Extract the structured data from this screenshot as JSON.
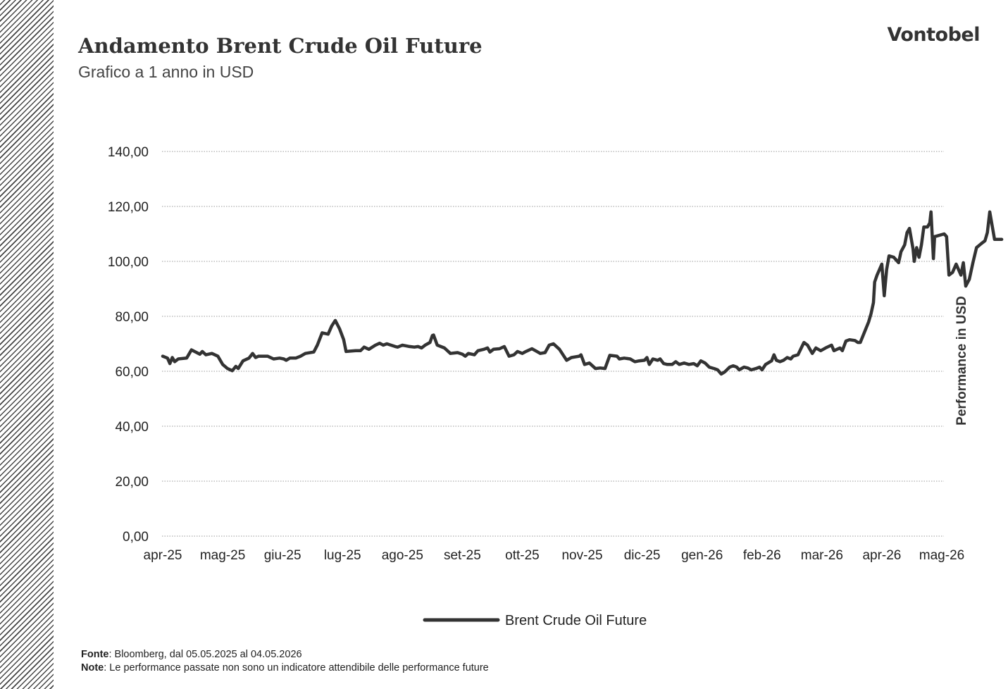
{
  "header": {
    "title": "Andamento Brent Crude Oil Future",
    "subtitle": "Grafico a 1 anno in USD",
    "brand": "Vontobel"
  },
  "footer": {
    "source_label": "Fonte",
    "source_text": ": Bloomberg, dal 05.05.2025 al 04.05.2026",
    "note_label": "Note",
    "note_text": ": Le performance passate non sono un indicatore attendibile delle performance future"
  },
  "colors": {
    "line": "#333333",
    "grid": "#999999",
    "hatch": "#444444"
  },
  "chart_data": {
    "type": "line",
    "title": "Andamento Brent Crude Oil Future",
    "subtitle": "Grafico a 1 anno in USD",
    "xlabel": "",
    "ylabel": "Performance in USD",
    "ylim": [
      0,
      140
    ],
    "y_ticks": [
      0,
      20,
      40,
      60,
      80,
      100,
      120,
      140
    ],
    "y_tick_labels": [
      "0,00",
      "20,00",
      "40,00",
      "60,00",
      "80,00",
      "100,00",
      "120,00",
      "140,00"
    ],
    "x_tick_labels": [
      "apr-25",
      "mag-25",
      "giu-25",
      "lug-25",
      "ago-25",
      "set-25",
      "ott-25",
      "nov-25",
      "dic-25",
      "gen-26",
      "feb-26",
      "mar-26",
      "apr-26",
      "mag-26"
    ],
    "grid": "horizontal dotted",
    "legend_position": "bottom",
    "series": [
      {
        "name": "Brent Crude Oil Future",
        "points": [
          [
            0.0,
            65.5
          ],
          [
            0.08,
            64.8
          ],
          [
            0.12,
            62.8
          ],
          [
            0.16,
            65.0
          ],
          [
            0.2,
            63.5
          ],
          [
            0.26,
            64.5
          ],
          [
            0.4,
            64.8
          ],
          [
            0.48,
            67.8
          ],
          [
            0.62,
            66.2
          ],
          [
            0.66,
            67.2
          ],
          [
            0.72,
            66.0
          ],
          [
            0.82,
            66.5
          ],
          [
            0.92,
            65.5
          ],
          [
            1.0,
            62.5
          ],
          [
            1.08,
            61.0
          ],
          [
            1.16,
            60.2
          ],
          [
            1.22,
            61.8
          ],
          [
            1.26,
            61.0
          ],
          [
            1.34,
            63.8
          ],
          [
            1.44,
            64.8
          ],
          [
            1.5,
            66.5
          ],
          [
            1.55,
            65.0
          ],
          [
            1.6,
            65.5
          ],
          [
            1.75,
            65.5
          ],
          [
            1.85,
            64.5
          ],
          [
            1.95,
            64.8
          ],
          [
            2.02,
            64.5
          ],
          [
            2.06,
            64.0
          ],
          [
            2.12,
            64.8
          ],
          [
            2.22,
            64.8
          ],
          [
            2.3,
            65.5
          ],
          [
            2.38,
            66.5
          ],
          [
            2.52,
            67.0
          ],
          [
            2.58,
            69.5
          ],
          [
            2.66,
            74.0
          ],
          [
            2.76,
            73.5
          ],
          [
            2.82,
            76.5
          ],
          [
            2.88,
            78.5
          ],
          [
            2.95,
            75.5
          ],
          [
            3.02,
            71.5
          ],
          [
            3.06,
            67.2
          ],
          [
            3.22,
            67.5
          ],
          [
            3.3,
            67.5
          ],
          [
            3.36,
            68.8
          ],
          [
            3.44,
            68.0
          ],
          [
            3.55,
            69.5
          ],
          [
            3.62,
            70.2
          ],
          [
            3.68,
            69.5
          ],
          [
            3.74,
            70.0
          ],
          [
            3.88,
            69.0
          ],
          [
            3.92,
            68.8
          ],
          [
            4.0,
            69.5
          ],
          [
            4.12,
            69.0
          ],
          [
            4.2,
            68.8
          ],
          [
            4.26,
            69.0
          ],
          [
            4.32,
            68.5
          ],
          [
            4.38,
            69.5
          ],
          [
            4.46,
            70.5
          ],
          [
            4.5,
            73.0
          ],
          [
            4.52,
            73.2
          ],
          [
            4.58,
            69.5
          ],
          [
            4.7,
            68.5
          ],
          [
            4.8,
            66.5
          ],
          [
            4.92,
            66.8
          ],
          [
            5.0,
            66.2
          ],
          [
            5.05,
            65.5
          ],
          [
            5.1,
            66.5
          ],
          [
            5.2,
            66.0
          ],
          [
            5.26,
            67.5
          ],
          [
            5.36,
            68.0
          ],
          [
            5.42,
            68.5
          ],
          [
            5.46,
            67.0
          ],
          [
            5.52,
            68.0
          ],
          [
            5.62,
            68.2
          ],
          [
            5.7,
            69.0
          ],
          [
            5.78,
            65.5
          ],
          [
            5.86,
            66.0
          ],
          [
            5.92,
            67.2
          ],
          [
            6.0,
            66.5
          ],
          [
            6.06,
            67.2
          ],
          [
            6.16,
            68.2
          ],
          [
            6.22,
            67.5
          ],
          [
            6.3,
            66.5
          ],
          [
            6.38,
            66.8
          ],
          [
            6.45,
            69.5
          ],
          [
            6.52,
            70.0
          ],
          [
            6.62,
            68.0
          ],
          [
            6.74,
            64.0
          ],
          [
            6.82,
            65.0
          ],
          [
            6.95,
            65.5
          ],
          [
            6.98,
            66.0
          ],
          [
            7.04,
            62.5
          ],
          [
            7.12,
            63.0
          ],
          [
            7.22,
            61.0
          ],
          [
            7.3,
            61.2
          ],
          [
            7.38,
            61.0
          ],
          [
            7.46,
            65.8
          ],
          [
            7.58,
            65.5
          ],
          [
            7.62,
            64.5
          ],
          [
            7.7,
            64.8
          ],
          [
            7.8,
            64.5
          ],
          [
            7.88,
            63.5
          ],
          [
            7.95,
            63.8
          ],
          [
            8.04,
            64.0
          ],
          [
            8.08,
            65.0
          ],
          [
            8.12,
            62.5
          ],
          [
            8.18,
            64.5
          ],
          [
            8.26,
            64.0
          ],
          [
            8.3,
            64.5
          ],
          [
            8.36,
            62.8
          ],
          [
            8.42,
            62.5
          ],
          [
            8.5,
            62.5
          ],
          [
            8.56,
            63.5
          ],
          [
            8.62,
            62.5
          ],
          [
            8.7,
            63.0
          ],
          [
            8.78,
            62.5
          ],
          [
            8.86,
            62.8
          ],
          [
            8.92,
            62.0
          ],
          [
            8.98,
            63.8
          ],
          [
            9.05,
            63.0
          ],
          [
            9.12,
            61.5
          ],
          [
            9.2,
            61.0
          ],
          [
            9.26,
            60.5
          ],
          [
            9.32,
            59.0
          ],
          [
            9.38,
            59.8
          ],
          [
            9.46,
            61.5
          ],
          [
            9.52,
            62.0
          ],
          [
            9.58,
            61.5
          ],
          [
            9.62,
            60.5
          ],
          [
            9.7,
            61.5
          ],
          [
            9.76,
            61.2
          ],
          [
            9.82,
            60.5
          ],
          [
            9.9,
            61.0
          ],
          [
            9.96,
            61.5
          ],
          [
            10.0,
            60.5
          ],
          [
            10.06,
            62.5
          ],
          [
            10.16,
            63.8
          ],
          [
            10.2,
            66.0
          ],
          [
            10.24,
            64.0
          ],
          [
            10.3,
            63.5
          ],
          [
            10.36,
            64.0
          ],
          [
            10.42,
            65.0
          ],
          [
            10.48,
            64.5
          ],
          [
            10.52,
            65.5
          ],
          [
            10.6,
            66.0
          ],
          [
            10.7,
            70.5
          ],
          [
            10.76,
            69.5
          ],
          [
            10.84,
            66.5
          ],
          [
            10.9,
            68.5
          ],
          [
            10.98,
            67.5
          ],
          [
            11.06,
            68.5
          ],
          [
            11.16,
            69.5
          ],
          [
            11.2,
            67.5
          ],
          [
            11.3,
            68.5
          ],
          [
            11.34,
            67.5
          ],
          [
            11.4,
            71.0
          ],
          [
            11.46,
            71.5
          ],
          [
            11.55,
            71.2
          ],
          [
            11.6,
            70.5
          ],
          [
            11.64,
            70.5
          ],
          [
            11.78,
            78.0
          ],
          [
            11.82,
            81.0
          ],
          [
            11.86,
            85.0
          ],
          [
            11.88,
            92.5
          ],
          [
            11.92,
            95.0
          ],
          [
            12.0,
            99.0
          ],
          [
            12.04,
            87.5
          ],
          [
            12.08,
            97.0
          ],
          [
            12.12,
            102.0
          ],
          [
            12.2,
            101.5
          ],
          [
            12.28,
            99.5
          ],
          [
            12.32,
            103.5
          ],
          [
            12.38,
            106.0
          ],
          [
            12.42,
            110.5
          ],
          [
            12.46,
            112.0
          ],
          [
            12.52,
            104.5
          ],
          [
            12.54,
            100.0
          ],
          [
            12.58,
            105.0
          ],
          [
            12.62,
            101.5
          ],
          [
            12.66,
            106.0
          ],
          [
            12.7,
            112.5
          ],
          [
            12.76,
            112.5
          ],
          [
            12.8,
            114.0
          ],
          [
            12.82,
            118.0
          ],
          [
            12.86,
            101.0
          ],
          [
            12.88,
            109.0
          ],
          [
            13.04,
            110.0
          ],
          [
            13.08,
            109.0
          ],
          [
            13.12,
            95.0
          ],
          [
            13.18,
            96.0
          ],
          [
            13.24,
            99.0
          ],
          [
            13.28,
            97.0
          ],
          [
            13.32,
            95.0
          ],
          [
            13.36,
            99.5
          ],
          [
            13.4,
            91.0
          ],
          [
            13.46,
            93.5
          ],
          [
            13.52,
            99.5
          ],
          [
            13.58,
            105.0
          ],
          [
            13.66,
            106.5
          ],
          [
            13.72,
            107.5
          ],
          [
            13.76,
            110.5
          ],
          [
            13.8,
            118.0
          ],
          [
            13.84,
            113.0
          ],
          [
            13.88,
            108.0
          ],
          [
            14.0,
            108.0
          ]
        ]
      }
    ]
  }
}
